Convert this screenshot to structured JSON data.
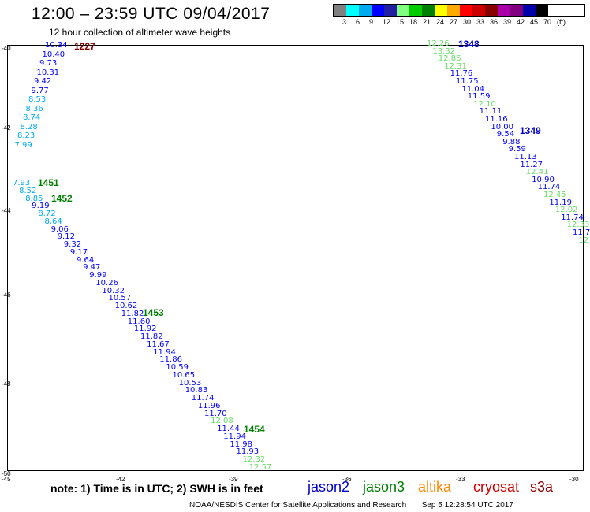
{
  "header": {
    "title": "12:00 – 23:59 UTC 09/04/2017",
    "subtitle": "12 hour collection of altimeter wave heights"
  },
  "legend": {
    "unit": "(ft)",
    "colors": [
      "#808080",
      "#00ffff",
      "#00aaee",
      "#0000ff",
      "#2020a0",
      "#80ff80",
      "#00cc00",
      "#008000",
      "#ffff00",
      "#ffaa00",
      "#ff0000",
      "#cc0000",
      "#880000",
      "#aa00aa",
      "#800080",
      "#0000aa",
      "#000000"
    ],
    "labels": [
      "3",
      "6",
      "9",
      "12",
      "15",
      "18",
      "21",
      "24",
      "27",
      "30",
      "33",
      "36",
      "39",
      "42",
      "45",
      "70",
      "(ft)"
    ]
  },
  "axes": {
    "lat_labels": [
      "-40",
      "-42",
      "-44",
      "-46",
      "-48",
      "-50"
    ],
    "lon_labels": [
      "-45",
      "-42",
      "-39",
      "-36",
      "-33",
      "-30"
    ]
  },
  "passes": [
    {
      "id": "1227",
      "color": "#880000"
    },
    {
      "id": "1348",
      "color": "#0000cc"
    },
    {
      "id": "1349",
      "color": "#0000cc"
    },
    {
      "id": "1451",
      "color": "#008000"
    },
    {
      "id": "1452",
      "color": "#008000"
    },
    {
      "id": "1453",
      "color": "#008000"
    },
    {
      "id": "1454",
      "color": "#008000"
    }
  ],
  "track_points": {
    "track_a": [
      "10.34",
      "10.40",
      "9.73",
      "10.31",
      "9.42",
      "9.77",
      "8.53",
      "8.36",
      "8.74",
      "8.28",
      "8.23",
      "7.99"
    ],
    "track_b": [
      "12.26",
      "13.32",
      "12.86",
      "12.31",
      "11.76",
      "11.75",
      "11.04",
      "11.59",
      "12.10",
      "11.11",
      "11.16",
      "10.00",
      "9.54",
      "9.88",
      "9.59",
      "11.13",
      "11.27",
      "12.41",
      "10.90",
      "11.74",
      "12.45",
      "11.19",
      "12.02",
      "11.74",
      "12.33",
      "11.7",
      "12"
    ],
    "track_c": [
      "7.93",
      "8.52",
      "8.85",
      "9.19",
      "8.72",
      "8.64",
      "9.06",
      "9.12",
      "9.32",
      "9.17",
      "9.64",
      "9.47",
      "9.99",
      "10.26",
      "10.32",
      "10.57",
      "10.62",
      "11.82",
      "11.60",
      "11.92",
      "11.82",
      "11.67",
      "11.94",
      "11.86",
      "10.59",
      "10.65",
      "10.53",
      "10.83",
      "11.74",
      "11.96",
      "11.70",
      "12.08",
      "11.44",
      "11.94",
      "11.98",
      "11.93",
      "12.32",
      "12.57"
    ]
  },
  "footer": {
    "note": "note: 1) Time is in UTC; 2) SWH is in feet",
    "satellites": [
      {
        "name": "jason2",
        "color": "#0000cc"
      },
      {
        "name": "jason3",
        "color": "#008000"
      },
      {
        "name": "altika",
        "color": "#ff8800"
      },
      {
        "name": "cryosat",
        "color": "#cc0000"
      },
      {
        "name": "s3a",
        "color": "#880000"
      }
    ],
    "credit_left": "NOAA/NESDIS Center for Satellite Applications and Research",
    "credit_right": "Sep  5 12:28:54 UTC 2017"
  }
}
